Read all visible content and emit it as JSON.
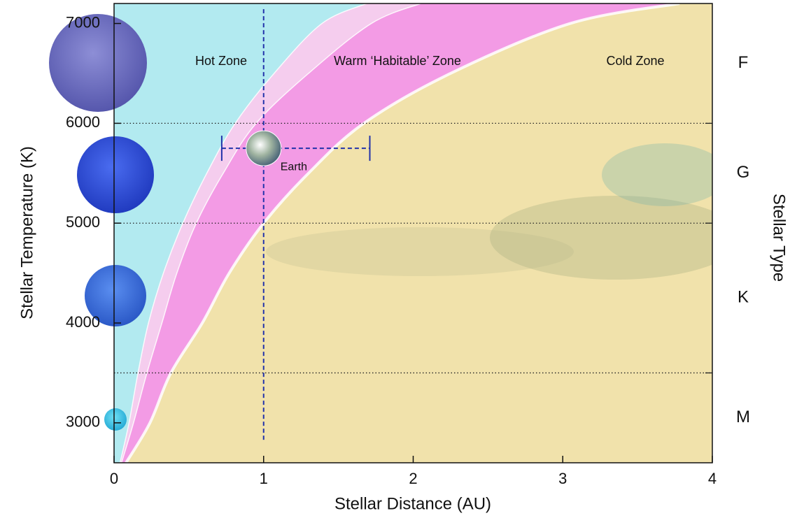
{
  "chart_data": {
    "type": "zones",
    "x_label": "Stellar Distance (AU)",
    "y_label": "Stellar Temperature (K)",
    "y2_label": "Stellar Type",
    "xlim": [
      0,
      4
    ],
    "xticks": [
      0,
      1,
      2,
      3,
      4
    ],
    "ylim": [
      2600,
      7200
    ],
    "yticks": [
      3000,
      4000,
      5000,
      6000,
      7000
    ],
    "background_color": "#f1e2ab",
    "boundary_temperatures": [
      2600,
      3000,
      3500,
      4000,
      4500,
      5000,
      5500,
      6000,
      6500,
      7000,
      7200
    ],
    "boundaries": [
      {
        "color": "#f39be5",
        "x": [
          0.08,
          0.24,
          0.38,
          0.59,
          0.77,
          1.0,
          1.3,
          1.67,
          2.25,
          3.05,
          3.78
        ]
      },
      {
        "color": "#f5cdee",
        "x": [
          0.05,
          0.13,
          0.22,
          0.32,
          0.42,
          0.55,
          0.73,
          0.95,
          1.3,
          1.72,
          2.05
        ]
      },
      {
        "color": "#b2eaf0",
        "x": [
          0.04,
          0.1,
          0.16,
          0.23,
          0.33,
          0.46,
          0.62,
          0.81,
          1.07,
          1.39,
          1.69
        ]
      }
    ],
    "zone_labels": [
      "Hot Zone",
      "Warm ‘Habitable’ Zone",
      "Cold Zone"
    ],
    "type_boundaries": [
      6000,
      5000,
      3500
    ],
    "stellar_types": [
      "F",
      "G",
      "K",
      "M"
    ],
    "earth": {
      "label": "Earth",
      "x": 1,
      "y": 5750,
      "x_range": [
        0.72,
        1.71
      ]
    },
    "reference_line": {
      "x": 1,
      "y_range": [
        2830,
        7170
      ]
    }
  }
}
